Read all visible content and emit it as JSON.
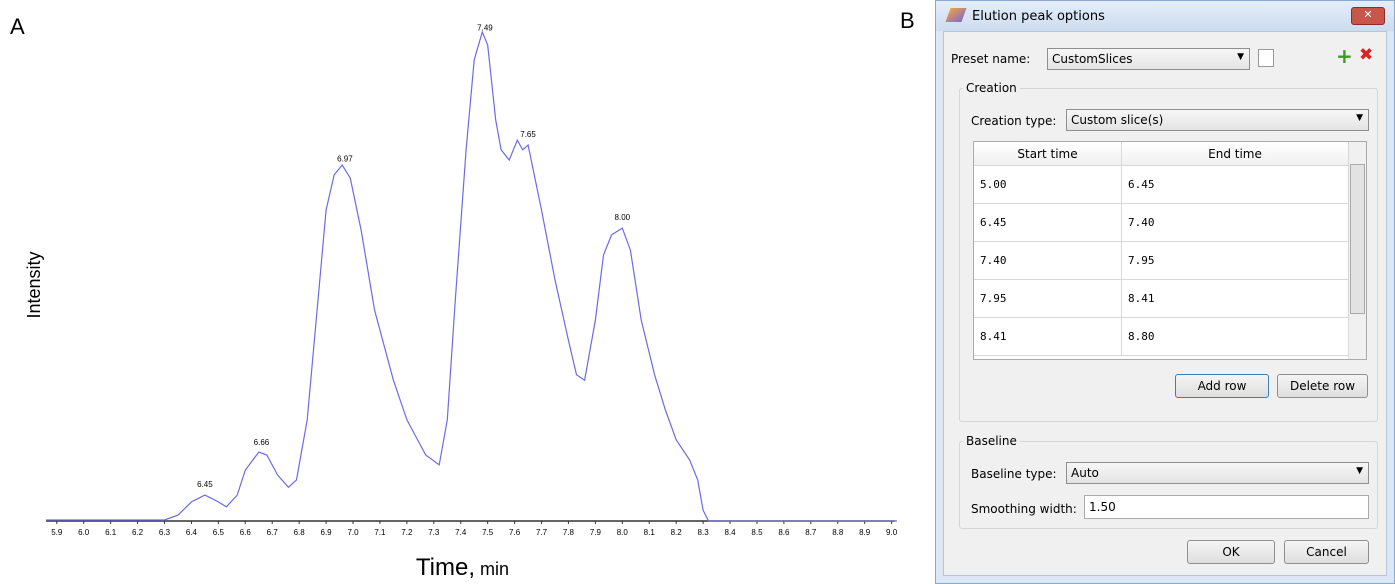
{
  "panel_labels": [
    "A",
    "B"
  ],
  "chart_data": {
    "type": "line",
    "xlabel": "Time,",
    "xlabel_unit": "min",
    "ylabel": "Intensity",
    "color": "#6b6be6",
    "xlim": [
      5.86,
      9.02
    ],
    "ylim": [
      0,
      100
    ],
    "xticks": [
      5.9,
      {
        "value": 6,
        "label": "6.0"
      },
      6.1,
      6.2,
      6.3,
      6.4,
      6.5,
      6.6,
      6.7,
      6.8,
      6.9,
      {
        "value": 7,
        "label": "7.0"
      },
      7.1,
      7.2,
      7.3,
      7.4,
      7.5,
      7.6,
      7.7,
      7.8,
      7.9,
      {
        "value": 8,
        "label": "8.0"
      },
      8.1,
      8.2,
      8.3,
      8.4,
      8.5,
      8.6,
      8.7,
      8.8,
      8.9,
      {
        "value": 9,
        "label": "9.0"
      }
    ],
    "x": [
      5.86,
      6.3,
      6.35,
      6.4,
      6.45,
      6.5,
      6.53,
      6.57,
      6.6,
      6.65,
      6.68,
      6.72,
      6.76,
      6.79,
      6.83,
      6.87,
      6.9,
      6.93,
      6.96,
      6.99,
      7.03,
      7.08,
      7.15,
      7.2,
      7.27,
      7.32,
      7.35,
      7.38,
      7.42,
      7.45,
      7.48,
      7.5,
      7.53,
      7.55,
      7.58,
      7.61,
      7.63,
      7.65,
      7.7,
      7.75,
      7.8,
      7.83,
      7.86,
      7.9,
      7.93,
      7.96,
      8.0,
      8.03,
      8.07,
      8.12,
      8.16,
      8.2,
      8.25,
      8.28,
      8.3,
      8.32,
      9.02
    ],
    "values": [
      0.2,
      0.2,
      1.2,
      3.9,
      5.3,
      3.9,
      2.9,
      5.3,
      10.4,
      14.1,
      13.5,
      9.4,
      6.9,
      8.4,
      20.7,
      45.2,
      63.6,
      70.8,
      72.8,
      70.1,
      59.5,
      43.1,
      28.8,
      20.7,
      13.5,
      11.5,
      20.7,
      45.2,
      75.9,
      94.3,
      100,
      97.3,
      82.0,
      75.9,
      73.8,
      77.9,
      75.9,
      76.9,
      63.6,
      49.3,
      37.0,
      29.9,
      28.8,
      41.1,
      54.4,
      58.5,
      59.9,
      55.4,
      41.1,
      29.9,
      22.7,
      16.6,
      12.5,
      8.4,
      2.2,
      0,
      0
    ],
    "annotations": [
      {
        "value": 6.45,
        "label": "6.45"
      },
      {
        "value": 6.66,
        "label": "6.66"
      },
      {
        "value": 6.97,
        "label": "6.97"
      },
      {
        "value": 7.49,
        "label": "7.49"
      },
      {
        "value": 7.65,
        "label": "7.65"
      },
      {
        "value": 8,
        "label": "8.00"
      }
    ]
  },
  "dialog": {
    "title": "Elution peak options",
    "preset_label": "Preset name:",
    "preset_value": "CustomSlices",
    "creation_group": "Creation",
    "creation_type_label": "Creation type:",
    "creation_type_value": "Custom slice(s)",
    "table": {
      "headers": [
        "Start time",
        "End time"
      ],
      "rows": [
        [
          "5.00",
          "6.45"
        ],
        [
          "6.45",
          "7.40"
        ],
        [
          "7.40",
          "7.95"
        ],
        [
          "7.95",
          "8.41"
        ],
        [
          "8.41",
          "8.80"
        ]
      ]
    },
    "add_row": "Add row",
    "delete_row": "Delete row",
    "baseline_group": "Baseline",
    "baseline_type_label": "Baseline type:",
    "baseline_type_value": "Auto",
    "smoothing_label": "Smoothing width:",
    "smoothing_value": "1.50",
    "ok": "OK",
    "cancel": "Cancel"
  }
}
